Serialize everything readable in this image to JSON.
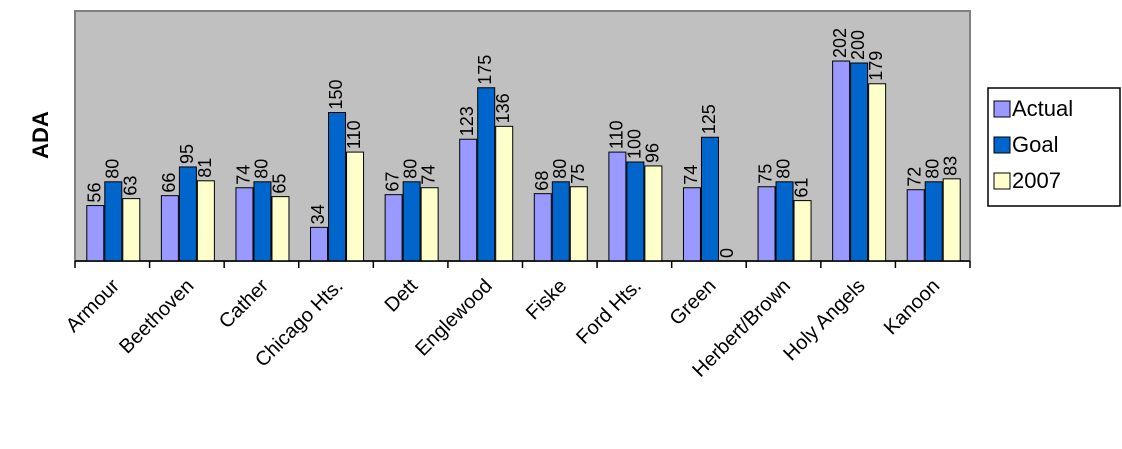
{
  "chart_data": {
    "type": "bar",
    "title": "",
    "xlabel": "",
    "ylabel": "ADA",
    "ylim": [
      0,
      240
    ],
    "categories": [
      "Armour",
      "Beethoven",
      "Cather",
      "Chicago Hts.",
      "Dett",
      "Englewood",
      "Fiske",
      "Ford Hts.",
      "Green",
      "Herbert/Brown",
      "Holy Angels",
      "Kanoon"
    ],
    "series": [
      {
        "name": "Actual",
        "color": "#9999ff",
        "values": [
          56,
          66,
          74,
          34,
          67,
          123,
          68,
          110,
          74,
          75,
          202,
          72
        ]
      },
      {
        "name": "Goal",
        "color": "#0066cc",
        "values": [
          80,
          95,
          80,
          150,
          80,
          175,
          80,
          100,
          125,
          80,
          200,
          80
        ]
      },
      {
        "name": "2007",
        "color": "#ffffcc",
        "values": [
          63,
          81,
          65,
          110,
          74,
          136,
          75,
          96,
          0,
          61,
          179,
          83
        ]
      }
    ],
    "grid": false,
    "plot_background": "#c0c0c0",
    "legend_position": "right"
  }
}
